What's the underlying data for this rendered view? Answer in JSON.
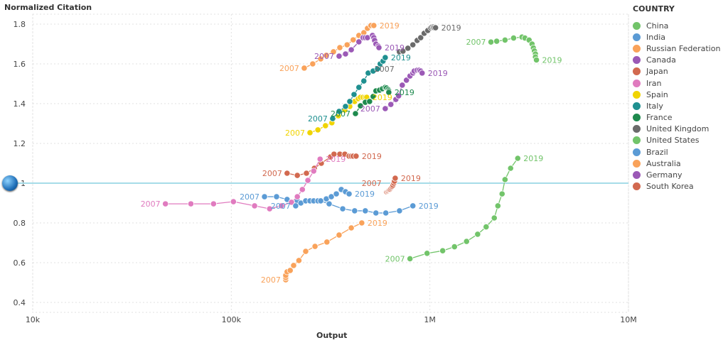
{
  "chart_data": {
    "type": "scatter",
    "mode": "connected",
    "xlabel": "Output",
    "ylabel": "Normalized Citation",
    "x_scale": "log",
    "xlim": [
      10000,
      10000000
    ],
    "ylim": [
      0.4,
      1.8
    ],
    "x_ticks": [
      {
        "v": 10000,
        "label": "10k"
      },
      {
        "v": 100000,
        "label": "100k"
      },
      {
        "v": 1000000,
        "label": "1M"
      },
      {
        "v": 10000000,
        "label": "10M"
      }
    ],
    "y_ticks": [
      {
        "v": 0.4,
        "label": "0.4"
      },
      {
        "v": 0.6,
        "label": "0.6"
      },
      {
        "v": 0.8,
        "label": "0.8"
      },
      {
        "v": 1.0,
        "label": "1"
      },
      {
        "v": 1.2,
        "label": "1.2"
      },
      {
        "v": 1.4,
        "label": "1.4"
      },
      {
        "v": 1.6,
        "label": "1.6"
      },
      {
        "v": 1.8,
        "label": "1.8"
      }
    ],
    "grid": true,
    "reference_line": {
      "y": 1.0,
      "color": "#a6dce8"
    },
    "legend": {
      "title": "COUNTRY",
      "position": "right"
    },
    "start_label": "2007",
    "end_label": "2019",
    "series": [
      {
        "name": "China",
        "color": "#72c46a",
        "x": [
          2030000,
          2170000,
          2390000,
          2640000,
          2910000,
          3010000,
          3160000,
          3270000,
          3320000,
          3360000,
          3400000,
          3400000,
          3440000
        ],
        "y": [
          1.71,
          1.714,
          1.72,
          1.73,
          1.735,
          1.73,
          1.72,
          1.7,
          1.68,
          1.665,
          1.65,
          1.635,
          1.62
        ]
      },
      {
        "name": "India",
        "color": "#5b9bd5",
        "x": [
          147000,
          169000,
          191000,
          215000,
          280000,
          311000,
          364000,
          418000,
          473000,
          535000,
          600000,
          703000,
          821000
        ],
        "y": [
          0.932,
          0.932,
          0.918,
          0.911,
          0.911,
          0.896,
          0.871,
          0.861,
          0.861,
          0.85,
          0.85,
          0.861,
          0.886
        ]
      },
      {
        "name": "Russian Federation",
        "color": "#f9a25a",
        "x": [
          233000,
          257000,
          282000,
          301000,
          327000,
          352000,
          383000,
          411000,
          439000,
          465000,
          485000,
          505000,
          522000
        ],
        "y": [
          1.579,
          1.6,
          1.625,
          1.643,
          1.661,
          1.682,
          1.696,
          1.721,
          1.743,
          1.757,
          1.779,
          1.793,
          1.793
        ]
      },
      {
        "name": "Canada",
        "color": "#9b59b6",
        "x": [
          349000,
          376000,
          402000,
          439000,
          461000,
          473000,
          485000,
          514000,
          522000,
          527000,
          535000,
          550000,
          554000
        ],
        "y": [
          1.639,
          1.65,
          1.671,
          1.711,
          1.732,
          1.732,
          1.732,
          1.743,
          1.732,
          1.718,
          1.7,
          1.689,
          1.682
        ]
      },
      {
        "name": "Japan",
        "color": "#d2694f",
        "x": [
          191000,
          215000,
          239000,
          262000,
          284000,
          316000,
          329000,
          352000,
          373000,
          392000,
          402000,
          411000,
          425000
        ],
        "y": [
          1.05,
          1.039,
          1.05,
          1.075,
          1.1,
          1.132,
          1.146,
          1.146,
          1.146,
          1.136,
          1.136,
          1.136,
          1.136
        ]
      },
      {
        "name": "Iran",
        "color": "#e07bbf",
        "x": [
          46600,
          62600,
          81400,
          102500,
          131000,
          156000,
          179000,
          201000,
          215000,
          228000,
          243000,
          260000,
          280000
        ],
        "y": [
          0.896,
          0.896,
          0.896,
          0.907,
          0.886,
          0.871,
          0.886,
          0.904,
          0.932,
          0.968,
          1.014,
          1.061,
          1.121
        ]
      },
      {
        "name": "Spain",
        "color": "#f0d400",
        "x": [
          249000,
          273000,
          298000,
          321000,
          346000,
          373000,
          395000,
          418000,
          436000,
          447000,
          461000,
          473000,
          481000
        ],
        "y": [
          1.254,
          1.268,
          1.289,
          1.304,
          1.339,
          1.368,
          1.386,
          1.411,
          1.425,
          1.432,
          1.432,
          1.432,
          1.432
        ]
      },
      {
        "name": "Italy",
        "color": "#1f9090",
        "x": [
          324000,
          349000,
          376000,
          395000,
          415000,
          439000,
          465000,
          489000,
          518000,
          545000,
          562000,
          581000,
          596000
        ],
        "y": [
          1.325,
          1.361,
          1.386,
          1.411,
          1.446,
          1.482,
          1.514,
          1.554,
          1.564,
          1.575,
          1.6,
          1.614,
          1.632
        ]
      },
      {
        "name": "France",
        "color": "#1e8a4e",
        "x": [
          422000,
          447000,
          473000,
          497000,
          518000,
          535000,
          558000,
          577000,
          596000,
          605000,
          616000,
          621000,
          621000
        ],
        "y": [
          1.35,
          1.389,
          1.407,
          1.411,
          1.436,
          1.464,
          1.468,
          1.475,
          1.482,
          1.479,
          1.471,
          1.464,
          1.457
        ]
      },
      {
        "name": "United Kingdom",
        "color": "#6b6b6b",
        "x": [
          702000,
          732000,
          775000,
          821000,
          863000,
          899000,
          936000,
          976000,
          1010000,
          1025000,
          1042000,
          1050000,
          1068000
        ],
        "y": [
          1.661,
          1.664,
          1.679,
          1.696,
          1.718,
          1.732,
          1.754,
          1.768,
          1.782,
          1.786,
          1.786,
          1.782,
          1.782
        ]
      },
      {
        "name": "United States",
        "color": "#72c46a",
        "x": [
          794000,
          968000,
          1160000,
          1330000,
          1530000,
          1740000,
          1920000,
          2110000,
          2200000,
          2310000,
          2390000,
          2550000,
          2770000
        ],
        "y": [
          0.62,
          0.647,
          0.66,
          0.68,
          0.707,
          0.743,
          0.78,
          0.825,
          0.886,
          0.946,
          1.018,
          1.075,
          1.125
        ]
      },
      {
        "name": "Brazil",
        "color": "#5b9bd5",
        "x": [
          211000,
          224000,
          237000,
          249000,
          260000,
          273000,
          282000,
          301000,
          319000,
          338000,
          358000,
          376000,
          392000
        ],
        "y": [
          0.886,
          0.9,
          0.911,
          0.911,
          0.911,
          0.911,
          0.911,
          0.921,
          0.932,
          0.946,
          0.968,
          0.957,
          0.946
        ]
      },
      {
        "name": "Australia",
        "color": "#f9a25a",
        "x": [
          188000,
          188000,
          188000,
          191000,
          198000,
          206000,
          219000,
          237000,
          264000,
          303000,
          349000,
          402000,
          454000
        ],
        "y": [
          0.514,
          0.525,
          0.536,
          0.554,
          0.561,
          0.586,
          0.611,
          0.657,
          0.682,
          0.704,
          0.739,
          0.775,
          0.8
        ]
      },
      {
        "name": "Germany",
        "color": "#9b59b6",
        "x": [
          596000,
          636000,
          674000,
          696000,
          726000,
          762000,
          794000,
          821000,
          834000,
          863000,
          884000,
          899000,
          914000
        ],
        "y": [
          1.375,
          1.396,
          1.421,
          1.439,
          1.493,
          1.518,
          1.539,
          1.554,
          1.564,
          1.568,
          1.568,
          1.564,
          1.554
        ]
      },
      {
        "name": "South Korea",
        "color": "#d2694f",
        "x": [
          605000,
          611000,
          616000,
          621000,
          626000,
          631000,
          636000,
          642000,
          647000,
          652000,
          658000,
          663000,
          669000
        ],
        "y": [
          0.957,
          0.96,
          0.962,
          0.965,
          0.968,
          0.97,
          0.975,
          0.98,
          0.985,
          0.99,
          1.0,
          1.01,
          1.025
        ]
      }
    ]
  },
  "icons": {
    "reference": "globe-icon"
  }
}
